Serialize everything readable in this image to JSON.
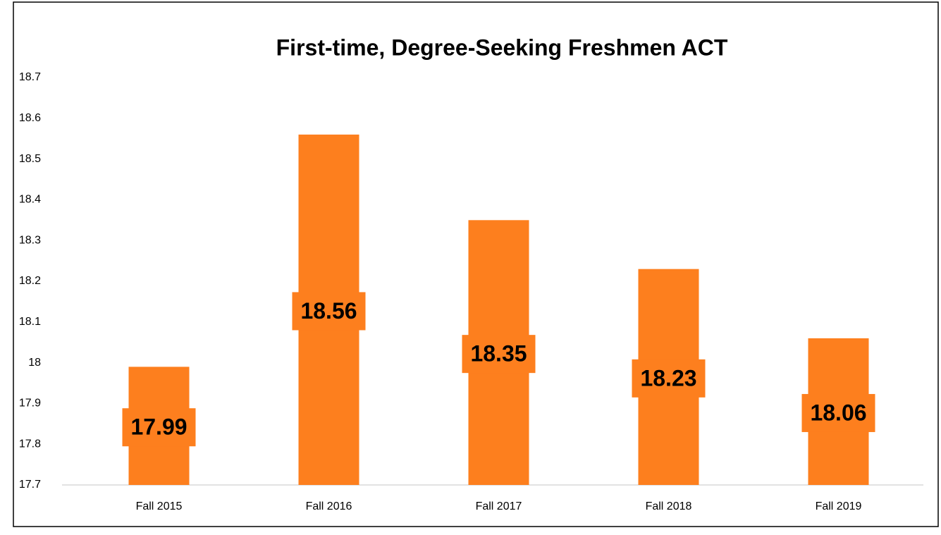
{
  "chart_data": {
    "type": "bar",
    "title": "First-time, Degree-Seeking Freshmen ACT",
    "categories": [
      "Fall 2015",
      "Fall 2016",
      "Fall 2017",
      "Fall 2018",
      "Fall 2019"
    ],
    "values": [
      17.99,
      18.56,
      18.35,
      18.23,
      18.06
    ],
    "color": "#fd7f1e",
    "ylim": [
      17.7,
      18.7
    ],
    "yticks": [
      17.7,
      17.8,
      17.9,
      18,
      18.1,
      18.2,
      18.3,
      18.4,
      18.5,
      18.6,
      18.7
    ],
    "grid": false
  }
}
